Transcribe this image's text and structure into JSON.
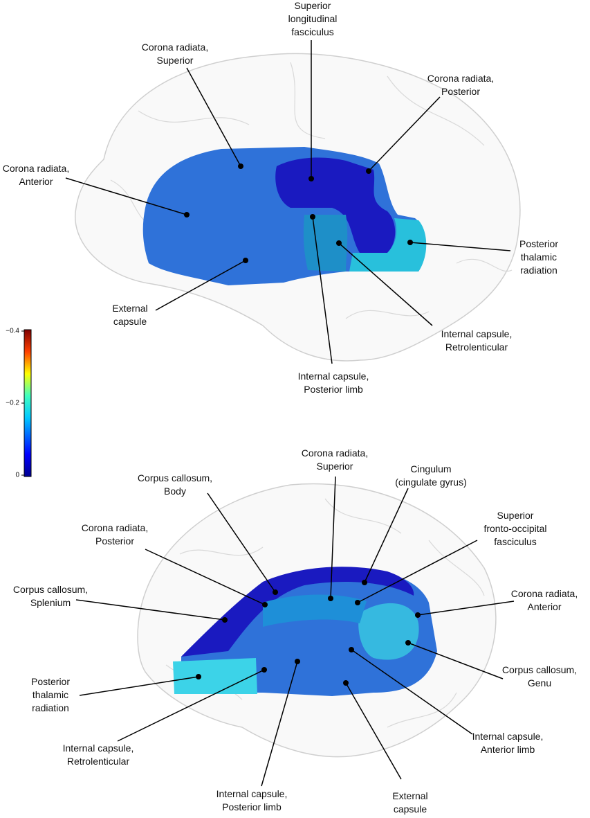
{
  "top_panel": {
    "labels": [
      {
        "lines": [
          "Superior",
          "longitudinal",
          "fasciculus"
        ]
      },
      {
        "lines": [
          "Corona radiata,",
          "Superior"
        ]
      },
      {
        "lines": [
          "Corona radiata,",
          "Posterior"
        ]
      },
      {
        "lines": [
          "Corona radiata,",
          "Anterior"
        ]
      },
      {
        "lines": [
          "Posterior",
          "thalamic",
          "radiation"
        ]
      },
      {
        "lines": [
          "External",
          "capsule"
        ]
      },
      {
        "lines": [
          "Internal capsule,",
          "Retrolenticular"
        ]
      },
      {
        "lines": [
          "Internal capsule,",
          "Posterior limb"
        ]
      }
    ]
  },
  "bottom_panel": {
    "labels": [
      {
        "lines": [
          "Corona radiata,",
          "Superior"
        ]
      },
      {
        "lines": [
          "Cingulum",
          "(cingulate gyrus)"
        ]
      },
      {
        "lines": [
          "Corpus callosum,",
          "Body"
        ]
      },
      {
        "lines": [
          "Superior",
          "fronto-occipital",
          "fasciculus"
        ]
      },
      {
        "lines": [
          "Corona radiata,",
          "Posterior"
        ]
      },
      {
        "lines": [
          "Corpus callosum,",
          "Splenium"
        ]
      },
      {
        "lines": [
          "Corona radiata,",
          "Anterior"
        ]
      },
      {
        "lines": [
          "Posterior",
          "thalamic",
          "radiation"
        ]
      },
      {
        "lines": [
          "Corpus callosum,",
          "Genu"
        ]
      },
      {
        "lines": [
          "Internal capsule,",
          "Retrolenticular"
        ]
      },
      {
        "lines": [
          "Internal capsule,",
          "Anterior limb"
        ]
      },
      {
        "lines": [
          "External",
          "capsule"
        ]
      },
      {
        "lines": [
          "Internal capsule,",
          "Posterior limb"
        ]
      }
    ]
  },
  "colorbar": {
    "ticks": [
      "−0.4",
      "−0.2",
      "0"
    ]
  }
}
